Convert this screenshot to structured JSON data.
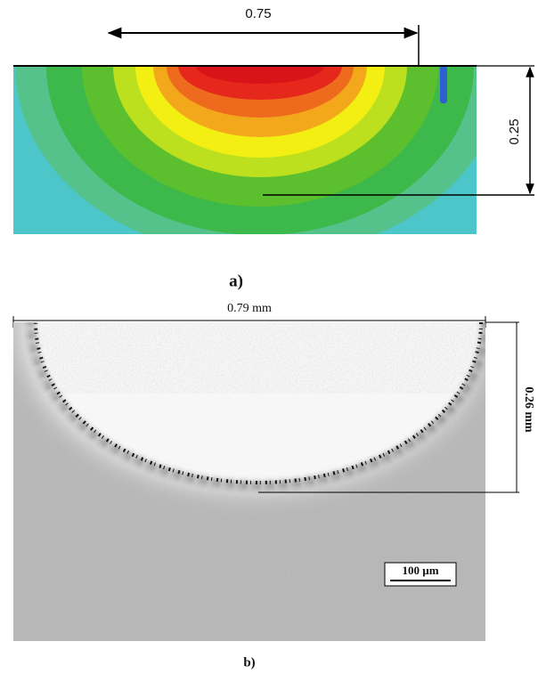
{
  "panel_a": {
    "width_label": "0.75",
    "depth_label": "0.25",
    "caption": "a)"
  },
  "panel_b": {
    "width_label": "0.79 mm",
    "depth_label": "0.26 mm",
    "scale_bar": "100 µm",
    "caption": "b)"
  }
}
